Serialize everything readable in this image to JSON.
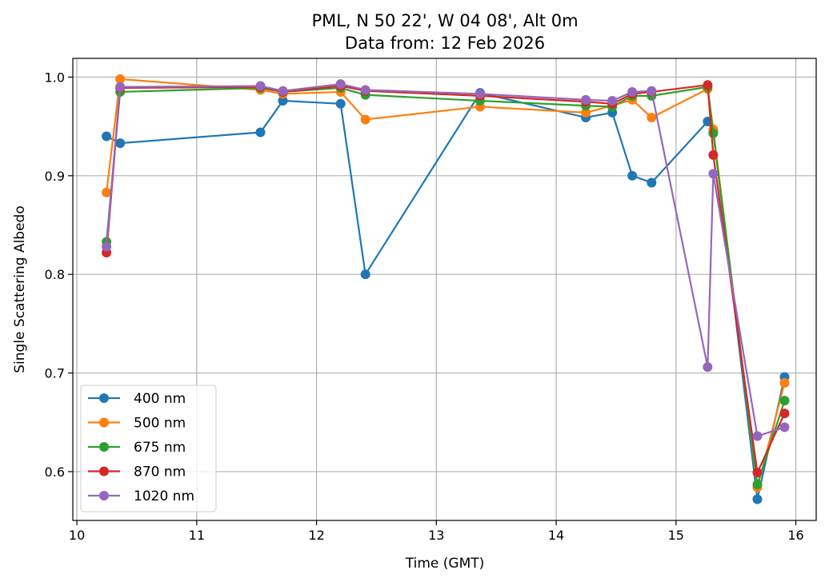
{
  "chart_data": {
    "type": "line",
    "title": "PML, N 50 22', W 04 08', Alt 0m",
    "subtitle": "Data from: 12 Feb 2026",
    "xlabel": "Time (GMT)",
    "ylabel": "Single Scattering Albedo",
    "xlim": [
      9.966,
      16.17
    ],
    "ylim": [
      0.5505,
      1.019
    ],
    "xticks": [
      10,
      11,
      12,
      13,
      14,
      15,
      16
    ],
    "xtick_labels": [
      "10",
      "11",
      "12",
      "13",
      "14",
      "15",
      "16"
    ],
    "yticks": [
      0.6,
      0.7,
      0.8,
      0.9,
      1.0
    ],
    "ytick_labels": [
      "0.6",
      "0.7",
      "0.8",
      "0.9",
      "1.0"
    ],
    "grid": true,
    "legend_position": "lower-left",
    "x": [
      10.247,
      10.361,
      11.532,
      11.719,
      12.201,
      12.408,
      13.365,
      14.247,
      14.468,
      14.635,
      14.796,
      15.264,
      15.311,
      15.679,
      15.906
    ],
    "series": [
      {
        "name": "400 nm",
        "color": "#1f77b4",
        "values": [
          0.94,
          0.933,
          0.944,
          0.976,
          0.973,
          0.8,
          0.984,
          0.959,
          0.964,
          0.9,
          0.893,
          0.955,
          0.945,
          0.572,
          0.696
        ]
      },
      {
        "name": "500 nm",
        "color": "#ff7f0e",
        "values": [
          0.883,
          0.998,
          0.987,
          0.983,
          0.985,
          0.957,
          0.97,
          0.964,
          0.971,
          0.977,
          0.959,
          0.988,
          0.947,
          0.584,
          0.69
        ]
      },
      {
        "name": "675 nm",
        "color": "#2ca02c",
        "values": [
          0.833,
          0.985,
          0.989,
          0.985,
          0.989,
          0.982,
          0.976,
          0.971,
          0.97,
          0.981,
          0.981,
          0.99,
          0.943,
          0.587,
          0.672
        ]
      },
      {
        "name": "870 nm",
        "color": "#d62728",
        "values": [
          0.822,
          0.989,
          0.99,
          0.985,
          0.991,
          0.986,
          0.981,
          0.975,
          0.973,
          0.983,
          0.985,
          0.992,
          0.921,
          0.599,
          0.659
        ]
      },
      {
        "name": "1020 nm",
        "color": "#9467bd",
        "values": [
          0.828,
          0.99,
          0.991,
          0.986,
          0.993,
          0.987,
          0.983,
          0.977,
          0.976,
          0.985,
          0.986,
          0.706,
          0.902,
          0.636,
          0.645
        ]
      }
    ]
  }
}
